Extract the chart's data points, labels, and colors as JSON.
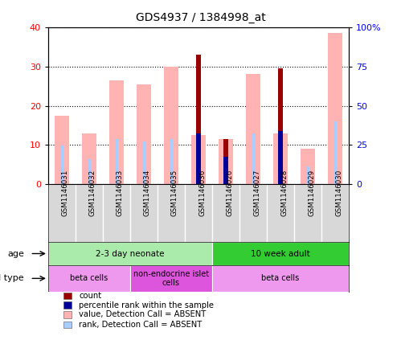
{
  "title": "GDS4937 / 1384998_at",
  "samples": [
    "GSM1146031",
    "GSM1146032",
    "GSM1146033",
    "GSM1146034",
    "GSM1146035",
    "GSM1146036",
    "GSM1146026",
    "GSM1146027",
    "GSM1146028",
    "GSM1146029",
    "GSM1146030"
  ],
  "value_absent": [
    17.5,
    13.0,
    26.5,
    25.5,
    30.0,
    12.5,
    11.5,
    28.0,
    13.0,
    9.0,
    38.5
  ],
  "rank_absent": [
    9.8,
    6.5,
    11.5,
    11.0,
    11.5,
    12.5,
    null,
    13.0,
    13.5,
    4.5,
    16.0
  ],
  "count": [
    null,
    null,
    null,
    null,
    null,
    33.0,
    11.5,
    null,
    29.5,
    null,
    null
  ],
  "percentile_rank": [
    null,
    null,
    null,
    null,
    null,
    13.0,
    7.0,
    null,
    13.5,
    null,
    null
  ],
  "ylim_left": [
    0,
    40
  ],
  "ylim_right": [
    0,
    100
  ],
  "yticks_left": [
    0,
    10,
    20,
    30,
    40
  ],
  "yticks_right": [
    0,
    25,
    50,
    75,
    100
  ],
  "yticklabels_right": [
    "0",
    "25",
    "50",
    "75",
    "100%"
  ],
  "color_value_absent": "#ffb3b3",
  "color_rank_absent": "#aaccff",
  "color_count": "#990000",
  "color_percentile": "#000099",
  "age_groups": [
    {
      "label": "2-3 day neonate",
      "start": 0,
      "end": 6,
      "color": "#aaeaaa"
    },
    {
      "label": "10 week adult",
      "start": 6,
      "end": 11,
      "color": "#33cc33"
    }
  ],
  "cell_type_groups": [
    {
      "label": "beta cells",
      "start": 0,
      "end": 3,
      "color": "#ee99ee"
    },
    {
      "label": "non-endocrine islet\ncells",
      "start": 3,
      "end": 6,
      "color": "#dd55dd"
    },
    {
      "label": "beta cells",
      "start": 6,
      "end": 11,
      "color": "#ee99ee"
    }
  ],
  "legend_items": [
    {
      "label": "count",
      "color": "#990000"
    },
    {
      "label": "percentile rank within the sample",
      "color": "#000099"
    },
    {
      "label": "value, Detection Call = ABSENT",
      "color": "#ffb3b3"
    },
    {
      "label": "rank, Detection Call = ABSENT",
      "color": "#aaccff"
    }
  ],
  "bar_width": 0.55,
  "rank_bar_width": 0.12,
  "count_bar_width": 0.18,
  "percentile_bar_width": 0.18
}
